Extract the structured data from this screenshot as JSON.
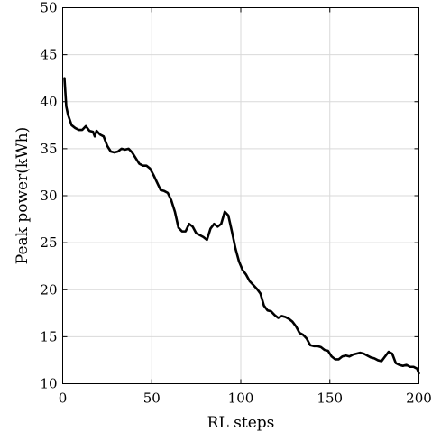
{
  "chart_data": {
    "type": "line",
    "title": "",
    "xlabel": "RL steps",
    "ylabel": "Peak power(kWh)",
    "xlim": [
      0,
      200
    ],
    "ylim": [
      10,
      50
    ],
    "x_ticks": [
      0,
      50,
      100,
      150,
      200
    ],
    "y_ticks": [
      10,
      15,
      20,
      25,
      30,
      35,
      40,
      45,
      50
    ],
    "grid": true,
    "legend": "none",
    "series": [
      {
        "color": "#000000",
        "x": [
          1,
          2,
          3,
          5,
          7,
          9,
          11,
          13,
          15,
          17,
          18,
          19,
          21,
          23,
          25,
          27,
          29,
          31,
          33,
          35,
          37,
          39,
          41,
          43,
          45,
          47,
          49,
          51,
          53,
          55,
          57,
          59,
          61,
          63,
          65,
          67,
          69,
          71,
          73,
          75,
          77,
          79,
          81,
          83,
          85,
          87,
          89,
          91,
          93,
          95,
          97,
          99,
          101,
          103,
          105,
          107,
          109,
          111,
          113,
          115,
          117,
          119,
          121,
          123,
          125,
          127,
          129,
          131,
          133,
          135,
          137,
          139,
          141,
          143,
          145,
          147,
          149,
          151,
          153,
          155,
          157,
          159,
          161,
          163,
          165,
          167,
          169,
          171,
          173,
          175,
          177,
          179,
          181,
          183,
          185,
          187,
          189,
          191,
          193,
          195,
          197,
          199,
          200
        ],
        "y": [
          42.5,
          39.5,
          38.6,
          37.5,
          37.2,
          37.0,
          37.0,
          37.4,
          36.9,
          36.8,
          36.3,
          36.9,
          36.5,
          36.3,
          35.3,
          34.7,
          34.6,
          34.7,
          35.0,
          34.9,
          35.0,
          34.6,
          34.0,
          33.4,
          33.2,
          33.2,
          32.9,
          32.2,
          31.4,
          30.6,
          30.5,
          30.3,
          29.5,
          28.3,
          26.6,
          26.2,
          26.2,
          27.0,
          26.7,
          26.0,
          25.8,
          25.6,
          25.3,
          26.5,
          27.0,
          26.7,
          27.0,
          28.3,
          27.9,
          26.2,
          24.4,
          23.0,
          22.1,
          21.6,
          20.9,
          20.5,
          20.1,
          19.6,
          18.3,
          17.8,
          17.7,
          17.3,
          17.0,
          17.2,
          17.1,
          16.9,
          16.6,
          16.1,
          15.4,
          15.2,
          14.8,
          14.1,
          14.0,
          14.0,
          13.9,
          13.6,
          13.5,
          12.9,
          12.6,
          12.6,
          12.9,
          13.0,
          12.9,
          13.1,
          13.2,
          13.3,
          13.2,
          13.0,
          12.8,
          12.7,
          12.5,
          12.4,
          12.9,
          13.4,
          13.2,
          12.2,
          12.0,
          11.9,
          12.0,
          11.8,
          11.8,
          11.6,
          11.1
        ]
      }
    ]
  }
}
